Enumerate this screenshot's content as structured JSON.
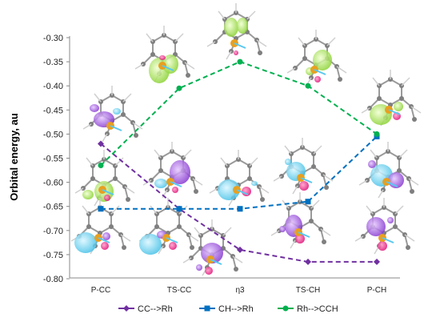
{
  "chart_data": {
    "type": "line",
    "ylabel": "Orbital energy, au",
    "ylim": [
      -0.8,
      -0.3
    ],
    "yticks": [
      -0.3,
      -0.35,
      -0.4,
      -0.45,
      -0.5,
      -0.55,
      -0.6,
      -0.65,
      -0.7,
      -0.75,
      -0.8
    ],
    "ytick_labels": [
      "-0.30",
      "-0.35",
      "-0.40",
      "-0.45",
      "-0.50",
      "-0.55",
      "-0.60",
      "-0.65",
      "-0.70",
      "-0.75",
      "-0.80"
    ],
    "categories": [
      "P-CC",
      "TS-CC",
      "η3",
      "TS-CH",
      "P-CH"
    ],
    "grid": false,
    "legend_position": "bottom",
    "series": [
      {
        "name": "CC-->Rh",
        "color": "#7030a0",
        "marker": "diamond",
        "values": [
          -0.52,
          -0.655,
          -0.74,
          -0.765,
          -0.765
        ]
      },
      {
        "name": "CH-->Rh",
        "color": "#0070c0",
        "marker": "square",
        "values": [
          -0.655,
          -0.655,
          -0.655,
          -0.64,
          -0.505
        ]
      },
      {
        "name": "Rh-->CCH",
        "color": "#00b050",
        "marker": "circle",
        "values": [
          -0.565,
          -0.405,
          -0.35,
          -0.4,
          -0.5
        ]
      }
    ]
  }
}
